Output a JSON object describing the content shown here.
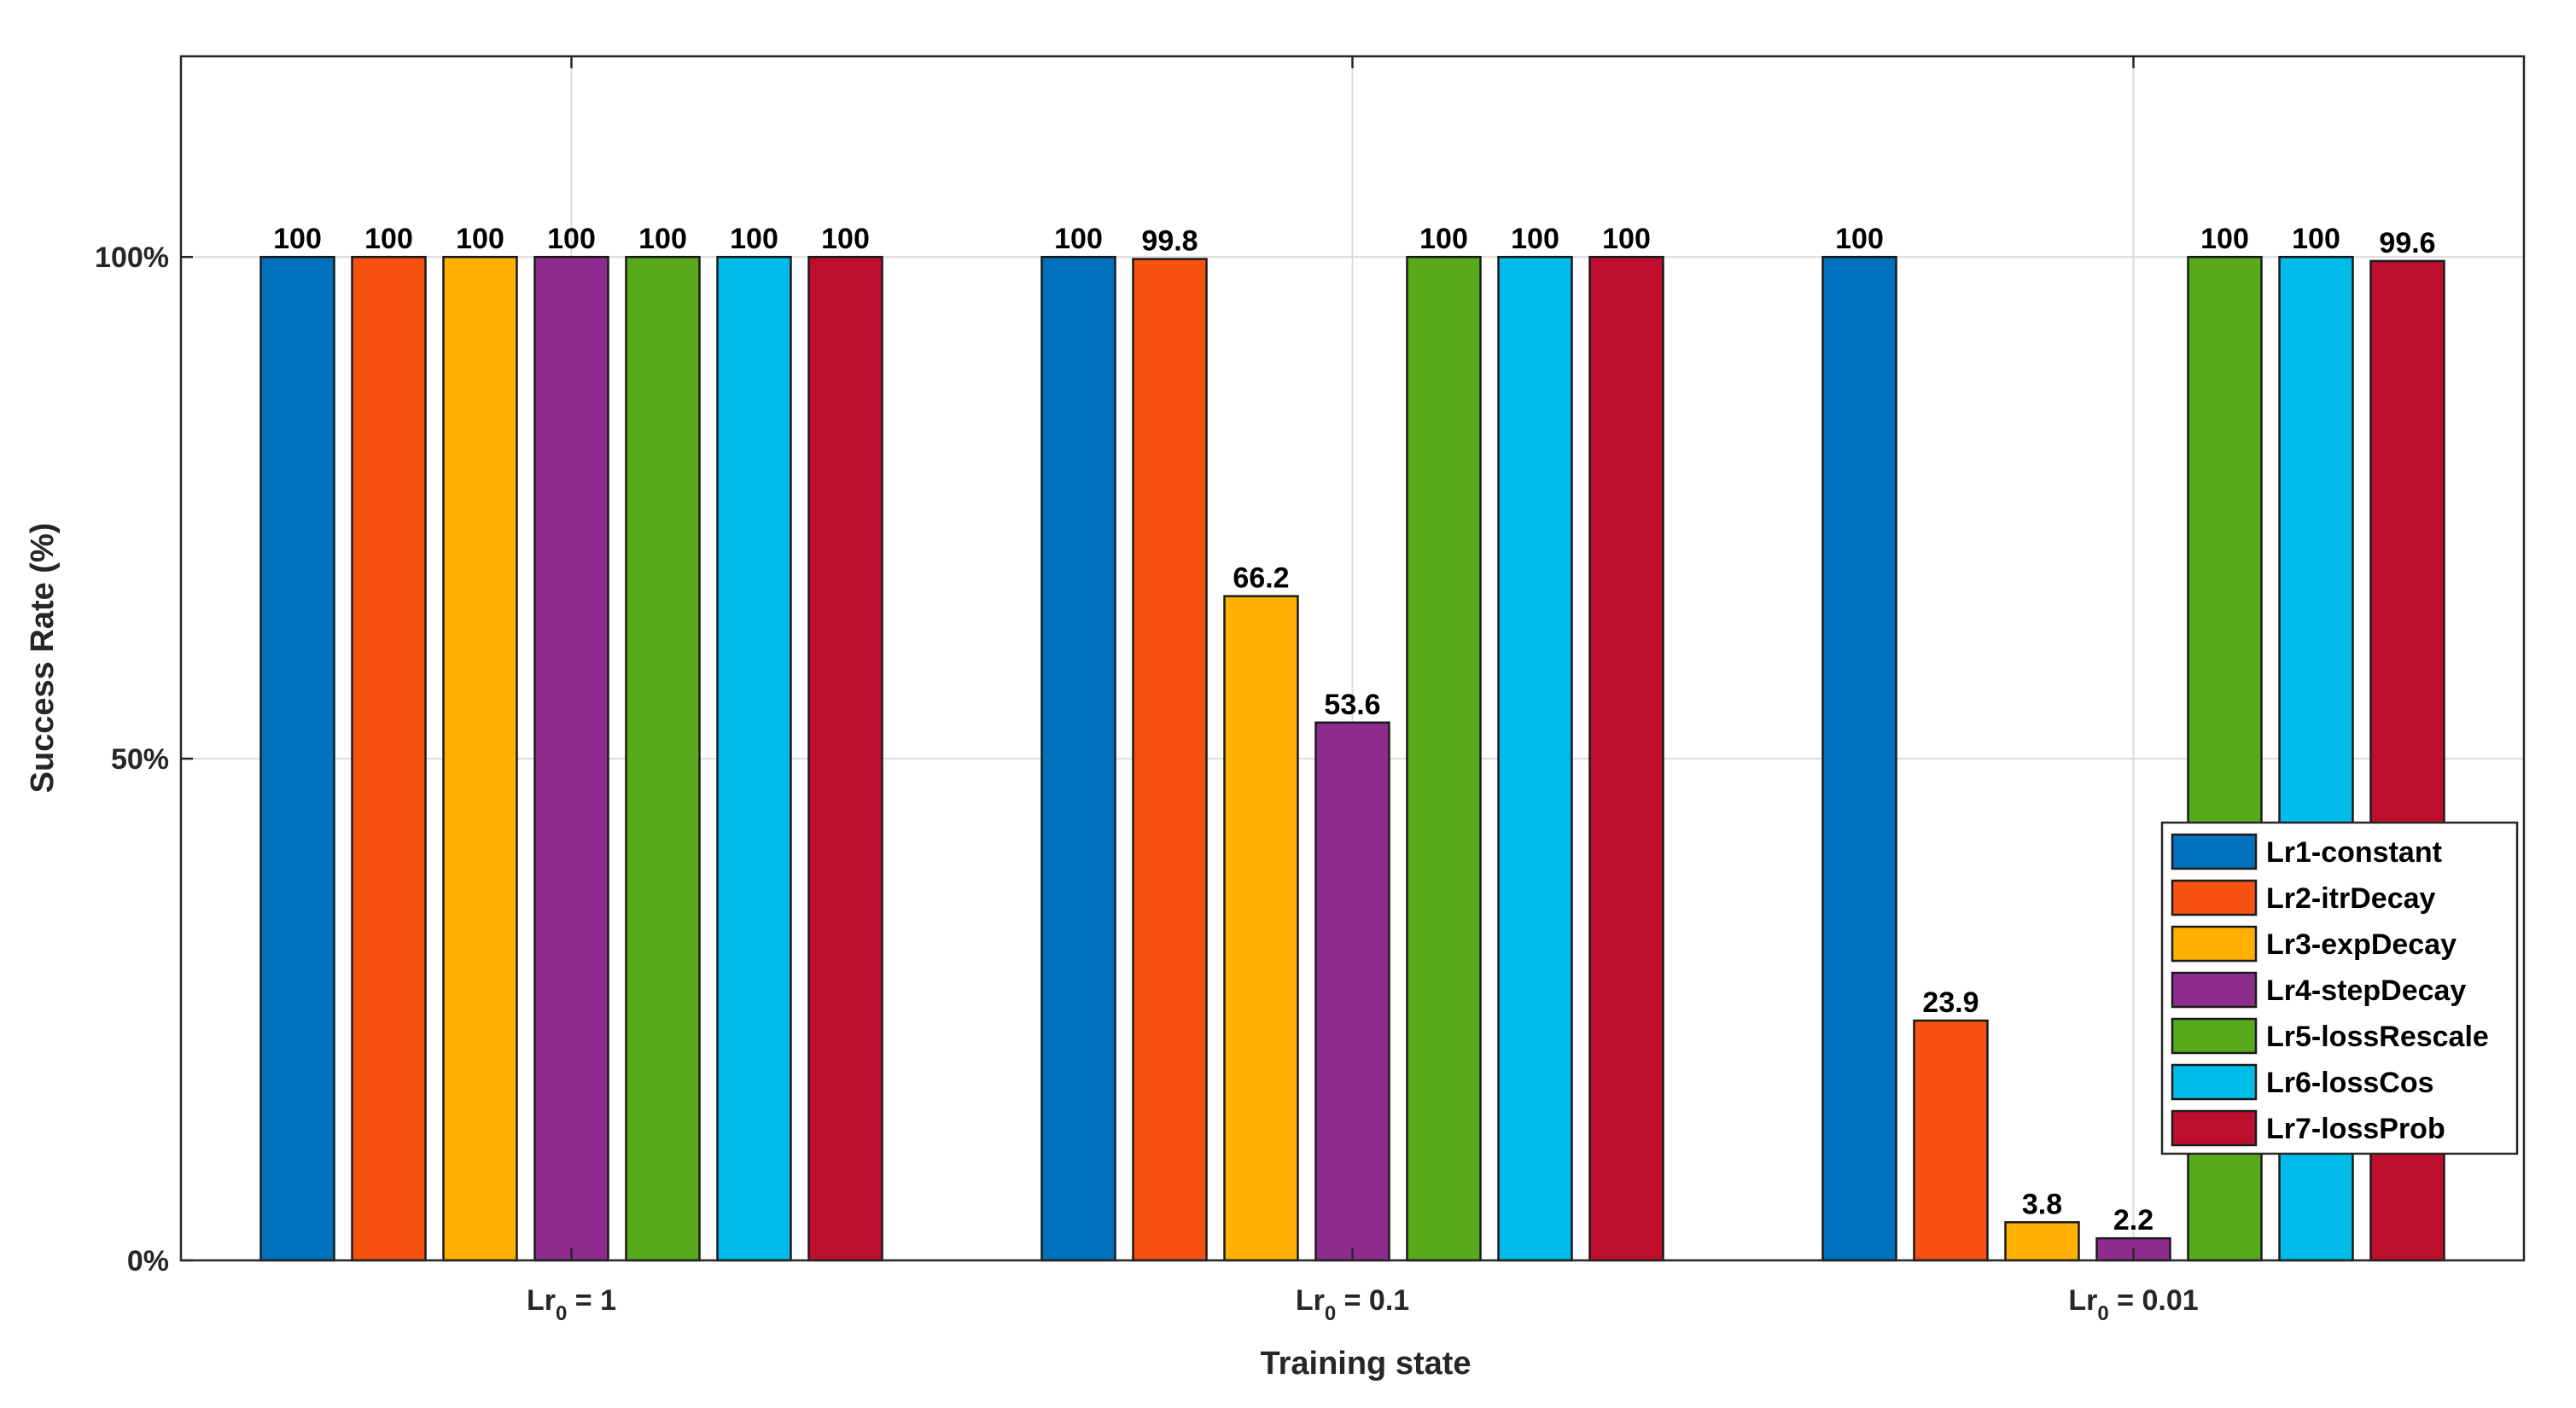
{
  "chart_data": {
    "type": "bar",
    "title": "",
    "xlabel": "Training state",
    "ylabel": "Success Rate (%)",
    "categories": [
      {
        "base": "Lr",
        "sub": "0",
        "rest": " = 1"
      },
      {
        "base": "Lr",
        "sub": "0",
        "rest": " = 0.1"
      },
      {
        "base": "Lr",
        "sub": "0",
        "rest": " = 0.01"
      }
    ],
    "ylim": [
      0,
      120
    ],
    "yticks": [
      {
        "value": 0,
        "label": "0%"
      },
      {
        "value": 50,
        "label": "50%"
      },
      {
        "value": 100,
        "label": "100%"
      }
    ],
    "grid": true,
    "legend_position": "bottom-right",
    "series": [
      {
        "name": "Lr1-constant",
        "color": "#0072BD",
        "values": [
          100,
          100,
          100
        ],
        "labels": [
          "100",
          "100",
          "100"
        ]
      },
      {
        "name": "Lr2-itrDecay",
        "color": "#F7520F",
        "values": [
          100,
          99.8,
          23.9
        ],
        "labels": [
          "100",
          "99.8",
          "23.9"
        ]
      },
      {
        "name": "Lr3-expDecay",
        "color": "#FFB000",
        "values": [
          100,
          66.2,
          3.8
        ],
        "labels": [
          "100",
          "66.2",
          "3.8"
        ]
      },
      {
        "name": "Lr4-stepDecay",
        "color": "#8E2C8E",
        "values": [
          100,
          53.6,
          2.2
        ],
        "labels": [
          "100",
          "53.6",
          "2.2"
        ]
      },
      {
        "name": "Lr5-lossRescale",
        "color": "#57AB1B",
        "values": [
          100,
          100,
          100
        ],
        "labels": [
          "100",
          "100",
          "100"
        ]
      },
      {
        "name": "Lr6-lossCos",
        "color": "#00BCEB",
        "values": [
          100,
          100,
          100
        ],
        "labels": [
          "100",
          "100",
          "100"
        ]
      },
      {
        "name": "Lr7-lossProb",
        "color": "#BE0E2D",
        "values": [
          100,
          100,
          99.6
        ],
        "labels": [
          "100",
          "100",
          "99.6"
        ]
      }
    ]
  }
}
